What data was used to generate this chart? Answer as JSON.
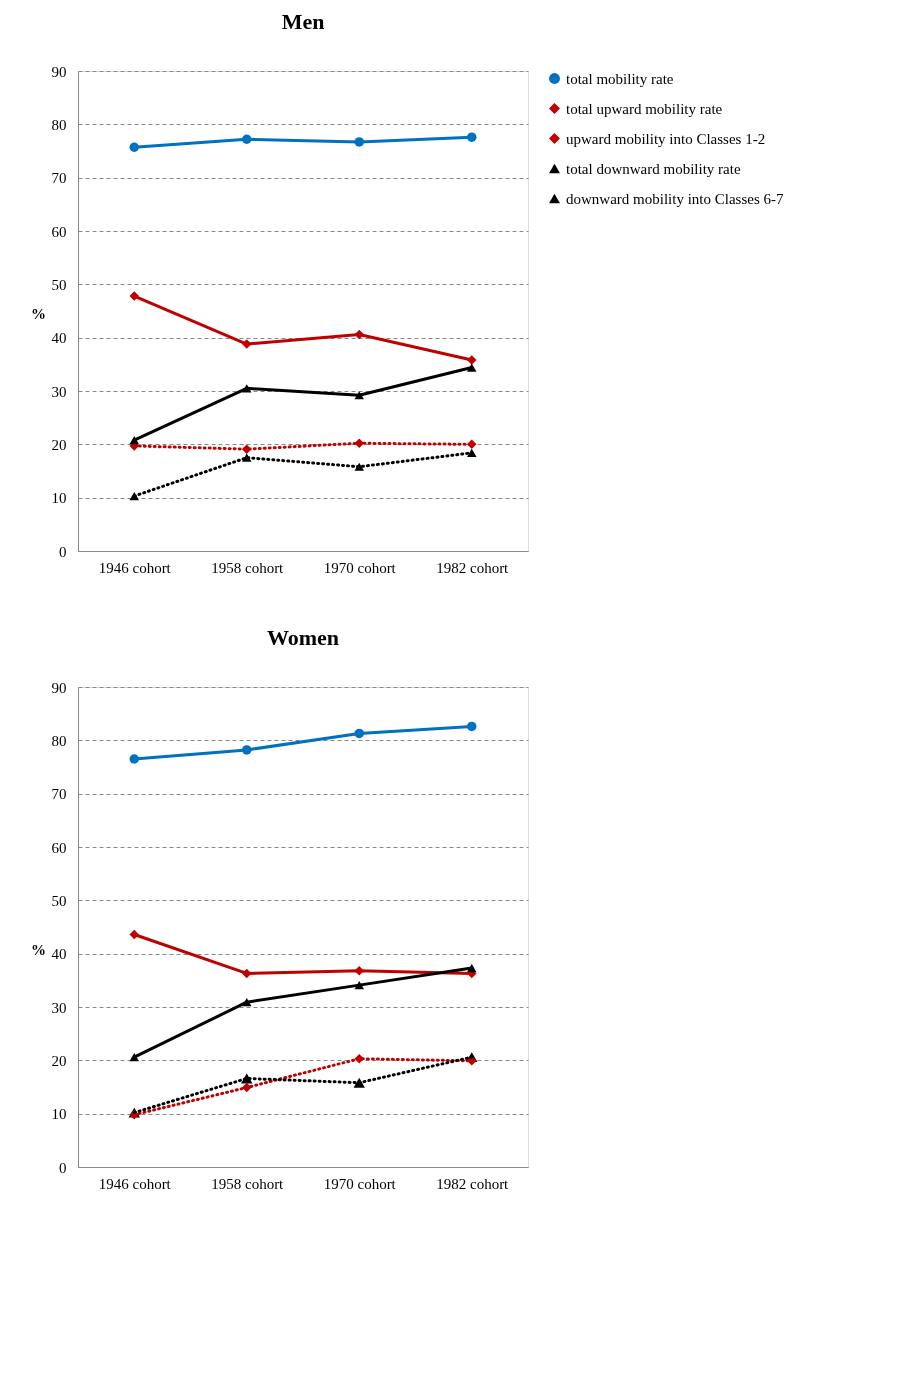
{
  "chart_data": [
    {
      "type": "line",
      "title": "Men",
      "ylabel": "%",
      "categories": [
        "1946 cohort",
        "1958 cohort",
        "1970 cohort",
        "1982 cohort"
      ],
      "ylim": [
        0,
        90
      ],
      "yticks": [
        0,
        10,
        20,
        30,
        40,
        50,
        60,
        70,
        80,
        90
      ],
      "grid": "y",
      "legend": "right",
      "series": [
        {
          "name": "total mobility rate",
          "color": "#0070c0",
          "marker": "circle",
          "line_style": "solid",
          "values": [
            75.7,
            77.2,
            76.7,
            77.6
          ]
        },
        {
          "name": "total upward mobility rate",
          "color": "#c00000",
          "marker": "diamond",
          "line_style": "solid",
          "values": [
            47.8,
            38.8,
            40.6,
            35.8
          ]
        },
        {
          "name": "upward mobility into Classes 1-2",
          "color": "#c00000",
          "marker": "diamond",
          "line_style": "dotted",
          "values": [
            19.7,
            19.1,
            20.2,
            20.0
          ]
        },
        {
          "name": "total downward mobility rate",
          "color": "#000000",
          "marker": "triangle",
          "line_style": "solid",
          "values": [
            20.8,
            30.5,
            29.2,
            34.4
          ]
        },
        {
          "name": "downward mobility into Classes 6-7",
          "color": "#000000",
          "marker": "triangle",
          "line_style": "dotted",
          "values": [
            10.3,
            17.5,
            15.8,
            18.4
          ]
        }
      ]
    },
    {
      "type": "line",
      "title": "Women",
      "ylabel": "%",
      "categories": [
        "1946 cohort",
        "1958 cohort",
        "1970 cohort",
        "1982 cohort"
      ],
      "ylim": [
        0,
        90
      ],
      "yticks": [
        0,
        10,
        20,
        30,
        40,
        50,
        60,
        70,
        80,
        90
      ],
      "grid": "y",
      "legend": "right",
      "series": [
        {
          "name": "total mobility rate",
          "color": "#0070c0",
          "marker": "circle",
          "line_style": "solid",
          "values": [
            76.5,
            78.2,
            81.3,
            82.6
          ]
        },
        {
          "name": "total upward mobility rate",
          "color": "#c00000",
          "marker": "diamond",
          "line_style": "solid",
          "values": [
            43.6,
            36.3,
            36.8,
            36.3
          ]
        },
        {
          "name": "upward mobility into Classes 1-2",
          "color": "#c00000",
          "marker": "diamond",
          "line_style": "dotted",
          "values": [
            9.8,
            14.9,
            20.3,
            19.9
          ]
        },
        {
          "name": "total downward mobility rate",
          "color": "#000000",
          "marker": "triangle",
          "line_style": "solid",
          "values": [
            20.6,
            30.9,
            34.1,
            37.3
          ]
        },
        {
          "color": "#000000",
          "marker": "triangle",
          "line_style": "dotted",
          "values": [
            10.2,
            16.6,
            15.8,
            20.6
          ]
        }
      ]
    }
  ]
}
